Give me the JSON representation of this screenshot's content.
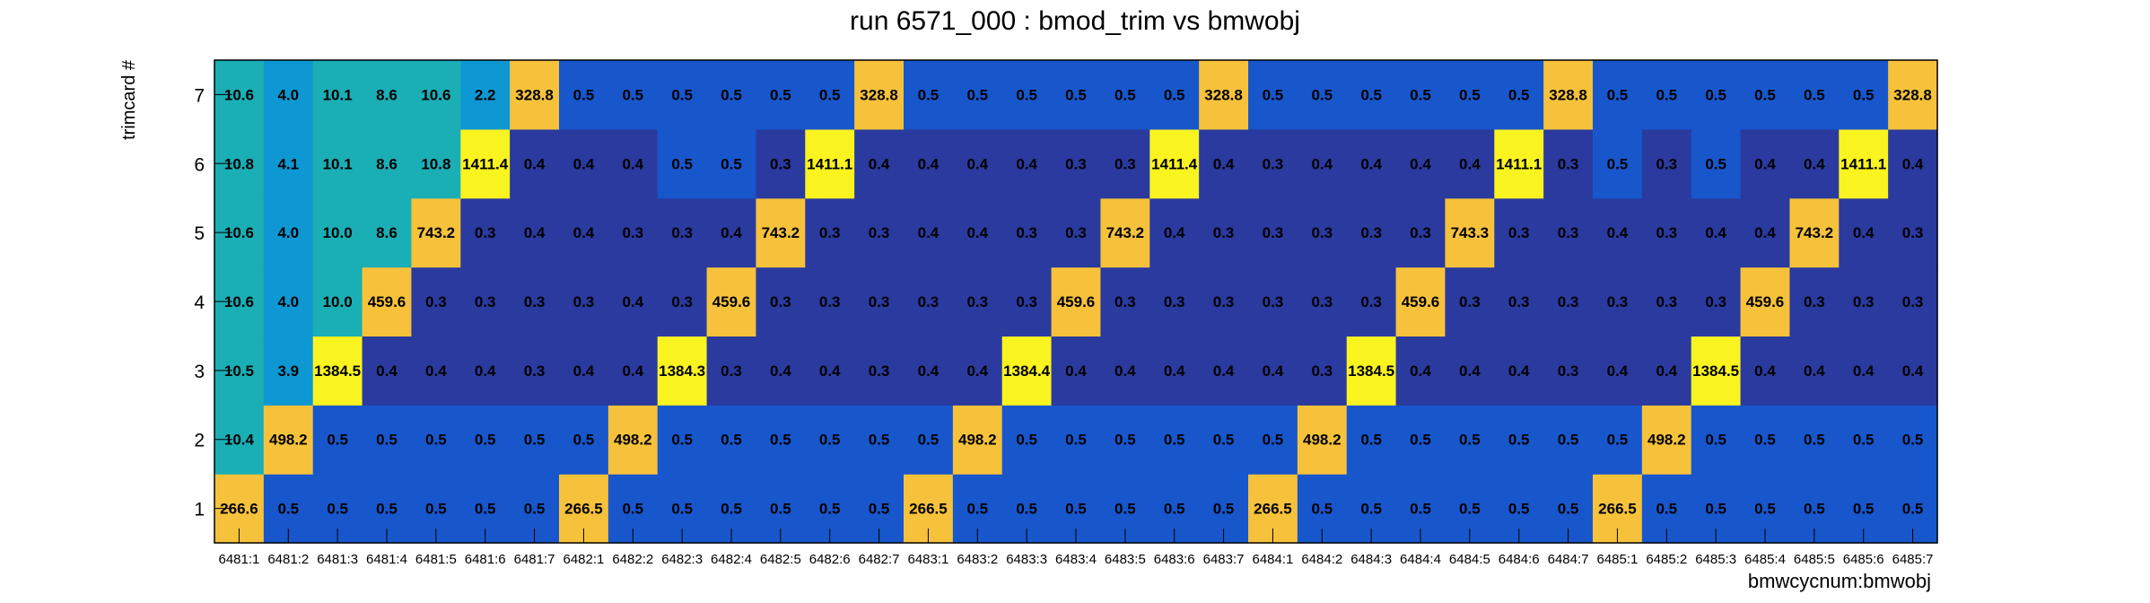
{
  "chart_data": {
    "type": "heatmap",
    "title": "run 6571_000 : bmod_trim vs bmwobj",
    "xlabel": "bmwcycnum:bmwobj",
    "ylabel": "trimcard #",
    "x_categories": [
      "6481:1",
      "6481:2",
      "6481:3",
      "6481:4",
      "6481:5",
      "6481:6",
      "6481:7",
      "6482:1",
      "6482:2",
      "6482:3",
      "6482:4",
      "6482:5",
      "6482:6",
      "6482:7",
      "6483:1",
      "6483:2",
      "6483:3",
      "6483:4",
      "6483:5",
      "6483:6",
      "6483:7",
      "6484:1",
      "6484:2",
      "6484:3",
      "6484:4",
      "6484:5",
      "6484:6",
      "6484:7",
      "6485:1",
      "6485:2",
      "6485:3",
      "6485:4",
      "6485:5",
      "6485:6",
      "6485:7"
    ],
    "y_categories": [
      "1",
      "2",
      "3",
      "4",
      "5",
      "6",
      "7"
    ],
    "values": [
      [
        "266.6",
        "0.5",
        "0.5",
        "0.5",
        "0.5",
        "0.5",
        "0.5",
        "266.5",
        "0.5",
        "0.5",
        "0.5",
        "0.5",
        "0.5",
        "0.5",
        "266.5",
        "0.5",
        "0.5",
        "0.5",
        "0.5",
        "0.5",
        "0.5",
        "266.5",
        "0.5",
        "0.5",
        "0.5",
        "0.5",
        "0.5",
        "0.5",
        "266.5",
        "0.5",
        "0.5",
        "0.5",
        "0.5",
        "0.5",
        "0.5"
      ],
      [
        "10.4",
        "498.2",
        "0.5",
        "0.5",
        "0.5",
        "0.5",
        "0.5",
        "0.5",
        "498.2",
        "0.5",
        "0.5",
        "0.5",
        "0.5",
        "0.5",
        "0.5",
        "498.2",
        "0.5",
        "0.5",
        "0.5",
        "0.5",
        "0.5",
        "0.5",
        "498.2",
        "0.5",
        "0.5",
        "0.5",
        "0.5",
        "0.5",
        "0.5",
        "498.2",
        "0.5",
        "0.5",
        "0.5",
        "0.5",
        "0.5"
      ],
      [
        "10.5",
        "3.9",
        "1384.5",
        "0.4",
        "0.4",
        "0.4",
        "0.3",
        "0.4",
        "0.4",
        "1384.3",
        "0.3",
        "0.4",
        "0.4",
        "0.3",
        "0.4",
        "0.4",
        "1384.4",
        "0.4",
        "0.4",
        "0.4",
        "0.4",
        "0.4",
        "0.3",
        "1384.5",
        "0.4",
        "0.4",
        "0.4",
        "0.3",
        "0.4",
        "0.4",
        "1384.5",
        "0.4",
        "0.4",
        "0.4",
        "0.4"
      ],
      [
        "10.6",
        "4.0",
        "10.0",
        "459.6",
        "0.3",
        "0.3",
        "0.3",
        "0.3",
        "0.4",
        "0.3",
        "459.6",
        "0.3",
        "0.3",
        "0.3",
        "0.3",
        "0.3",
        "0.3",
        "459.6",
        "0.3",
        "0.3",
        "0.3",
        "0.3",
        "0.3",
        "0.3",
        "459.6",
        "0.3",
        "0.3",
        "0.3",
        "0.3",
        "0.3",
        "0.3",
        "459.6",
        "0.3",
        "0.3",
        "0.3"
      ],
      [
        "10.6",
        "4.0",
        "10.0",
        "8.6",
        "743.2",
        "0.3",
        "0.4",
        "0.4",
        "0.3",
        "0.3",
        "0.4",
        "743.2",
        "0.3",
        "0.3",
        "0.4",
        "0.4",
        "0.3",
        "0.3",
        "743.2",
        "0.4",
        "0.3",
        "0.3",
        "0.3",
        "0.3",
        "0.3",
        "743.3",
        "0.3",
        "0.3",
        "0.4",
        "0.3",
        "0.4",
        "0.4",
        "743.2",
        "0.4",
        "0.3"
      ],
      [
        "10.8",
        "4.1",
        "10.1",
        "8.6",
        "10.8",
        "1411.4",
        "0.4",
        "0.4",
        "0.4",
        "0.5",
        "0.5",
        "0.3",
        "1411.1",
        "0.4",
        "0.4",
        "0.4",
        "0.4",
        "0.3",
        "0.3",
        "1411.4",
        "0.4",
        "0.3",
        "0.4",
        "0.4",
        "0.4",
        "0.4",
        "1411.1",
        "0.3",
        "0.5",
        "0.3",
        "0.5",
        "0.4",
        "0.4",
        "1411.1",
        "0.4"
      ],
      [
        "10.6",
        "4.0",
        "10.1",
        "8.6",
        "10.6",
        "2.2",
        "328.8",
        "0.5",
        "0.5",
        "0.5",
        "0.5",
        "0.5",
        "0.5",
        "328.8",
        "0.5",
        "0.5",
        "0.5",
        "0.5",
        "0.5",
        "0.5",
        "328.8",
        "0.5",
        "0.5",
        "0.5",
        "0.5",
        "0.5",
        "0.5",
        "328.8",
        "0.5",
        "0.5",
        "0.5",
        "0.5",
        "0.5",
        "0.5",
        "328.8"
      ]
    ],
    "colors": {
      "dark_navy": "#2a3a9e",
      "blue": "#1856cc",
      "sky_blue": "#0d98d3",
      "teal": "#1aaeb5",
      "orange_yellow": "#f6c23c",
      "yellow": "#f9f320"
    },
    "grid": false,
    "legend": "none"
  }
}
